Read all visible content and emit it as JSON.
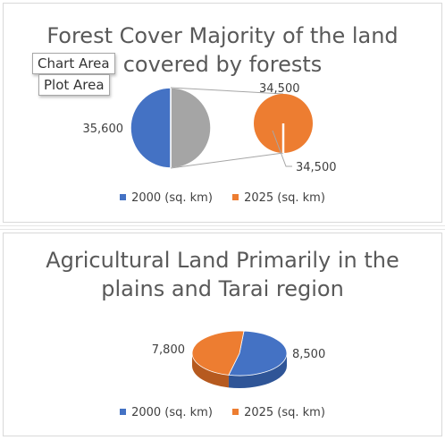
{
  "colors": {
    "blue": "#4472c4",
    "orange": "#ed7d31",
    "gray": "#a5a5a5",
    "title": "#595959",
    "connector": "#a6a6a6"
  },
  "tooltips": {
    "chart_area": "Chart Area",
    "plot_area": "Plot Area"
  },
  "chart_data": [
    {
      "type": "pie",
      "subtype": "pie-of-pie",
      "title_line1": "Forest Cover Majority of the land",
      "title_line2": "covered by forests",
      "series": [
        {
          "name": "2000 (sq. km)",
          "value": 35600,
          "label": "35,600",
          "color": "#4472c4"
        },
        {
          "name": "2025 (sq. km)",
          "value": 34500,
          "label": "34,500",
          "color": "#ed7d31"
        }
      ],
      "main_pie_labels": [
        "35,600"
      ],
      "secondary_pie_labels": [
        "34,500",
        "34,500"
      ],
      "legend": [
        "2000 (sq. km)",
        "2025 (sq. km)"
      ],
      "legend_position": "bottom"
    },
    {
      "type": "pie",
      "subtype": "3d-pie",
      "title_line1": "Agricultural Land Primarily in the",
      "title_line2": "plains and Tarai region",
      "series": [
        {
          "name": "2000 (sq. km)",
          "value": 8500,
          "label": "8,500",
          "color": "#4472c4"
        },
        {
          "name": "2025 (sq. km)",
          "value": 7800,
          "label": "7,800",
          "color": "#ed7d31"
        }
      ],
      "legend": [
        "2000 (sq. km)",
        "2025 (sq. km)"
      ],
      "legend_position": "bottom"
    }
  ]
}
